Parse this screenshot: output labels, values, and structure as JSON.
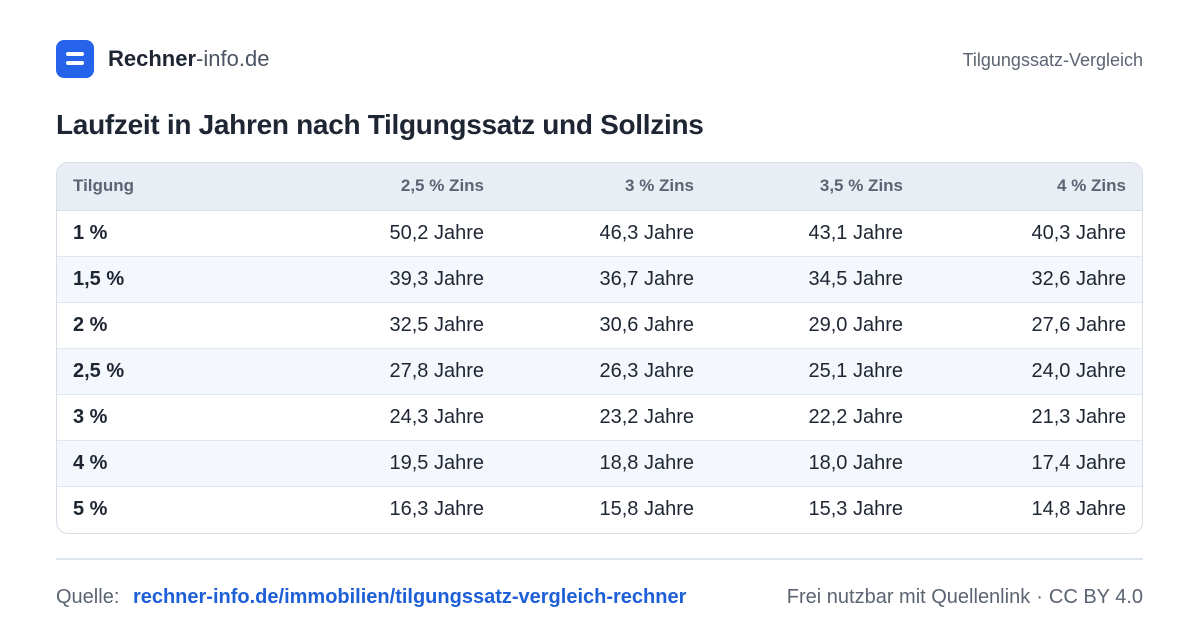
{
  "header": {
    "brand_bold": "Rechner",
    "brand_rest": "-info.de",
    "right_label": "Tilgungssatz-Vergleich"
  },
  "page_title": "Laufzeit in Jahren nach Tilgungssatz und Sollzins",
  "table": {
    "columns": [
      "Tilgung",
      "2,5 % Zins",
      "3 % Zins",
      "3,5 % Zins",
      "4 % Zins"
    ],
    "rows": [
      [
        "1 %",
        "50,2 Jahre",
        "46,3 Jahre",
        "43,1 Jahre",
        "40,3 Jahre"
      ],
      [
        "1,5 %",
        "39,3 Jahre",
        "36,7 Jahre",
        "34,5 Jahre",
        "32,6 Jahre"
      ],
      [
        "2 %",
        "32,5 Jahre",
        "30,6 Jahre",
        "29,0 Jahre",
        "27,6 Jahre"
      ],
      [
        "2,5 %",
        "27,8 Jahre",
        "26,3 Jahre",
        "25,1 Jahre",
        "24,0 Jahre"
      ],
      [
        "3 %",
        "24,3 Jahre",
        "23,2 Jahre",
        "22,2 Jahre",
        "21,3 Jahre"
      ],
      [
        "4 %",
        "19,5 Jahre",
        "18,8 Jahre",
        "18,0 Jahre",
        "17,4 Jahre"
      ],
      [
        "5 %",
        "16,3 Jahre",
        "15,8 Jahre",
        "15,3 Jahre",
        "14,8 Jahre"
      ]
    ]
  },
  "footer": {
    "source_label": "Quelle:",
    "source_link": "rechner-info.de/immobilien/tilgungssatz-vergleich-rechner",
    "usage_text": "Frei nutzbar mit Quellenlink",
    "separator": "·",
    "license": "CC BY 4.0"
  },
  "colors": {
    "accent": "#2563eb",
    "link": "#1d5fd6",
    "header_bg": "#e9eef5",
    "stripe_bg": "#f4f7fb"
  }
}
